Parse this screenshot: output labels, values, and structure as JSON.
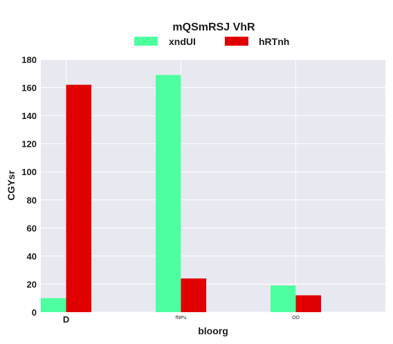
{
  "chart_data": {
    "type": "bar",
    "title": "mQSmRSJ VhR",
    "xlabel": "bloorg",
    "ylabel": "CGYsr",
    "categories": [
      "D",
      "fNPu",
      "OO"
    ],
    "category_label_sizes": [
      "normal",
      "small",
      "small"
    ],
    "series": [
      {
        "name": "xndUI",
        "color": "#4dffa0",
        "values": [
          10,
          169,
          19
        ]
      },
      {
        "name": "hRTnh",
        "color": "#e00000",
        "values": [
          162,
          24,
          12
        ]
      }
    ],
    "ylim": [
      0,
      180
    ],
    "yticks": [
      0,
      20,
      40,
      60,
      80,
      100,
      120,
      140,
      160,
      180
    ],
    "grid": true,
    "legend_position": "top-center",
    "background_color": "#e8e8f0"
  }
}
